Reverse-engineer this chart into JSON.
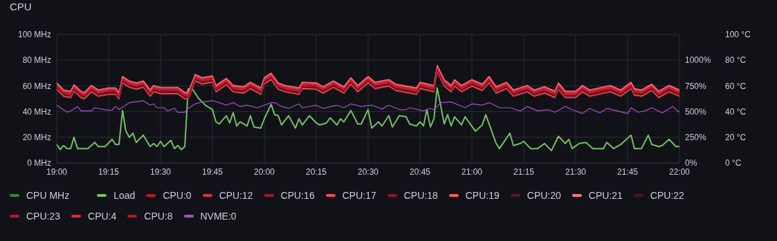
{
  "chart_data": {
    "type": "line",
    "title": "CPU",
    "x": [
      19,
      19.033,
      19.067,
      19.083,
      19.117,
      19.133,
      19.167,
      19.2,
      19.25,
      19.283,
      19.3,
      19.317,
      19.35,
      19.383,
      19.417,
      19.45,
      19.467,
      19.5,
      19.583,
      19.617,
      19.633,
      19.667,
      19.7,
      19.75,
      19.767,
      19.817,
      19.85,
      19.9,
      19.933,
      19.983,
      20,
      20.033,
      20.067,
      20.1,
      20.167,
      20.183,
      20.25,
      20.283,
      20.333,
      20.383,
      20.417,
      20.45,
      20.5,
      20.533,
      20.6,
      20.633,
      20.733,
      20.75,
      20.817,
      20.833,
      20.867,
      20.9,
      20.917,
      20.95,
      21,
      21.05,
      21.083,
      21.117,
      21.167,
      21.2,
      21.267,
      21.3,
      21.35,
      21.4,
      21.417,
      21.45,
      21.5,
      21.533,
      21.567,
      21.667,
      21.717,
      21.767,
      21.783,
      21.817,
      21.867,
      21.9,
      21.95,
      22
    ],
    "series": [
      {
        "name": "CPU MHz",
        "color": "#37872d",
        "values": [
          null,
          null,
          null,
          null,
          null,
          null,
          null,
          null,
          null,
          null,
          null,
          null,
          null,
          null,
          null,
          null,
          null,
          null,
          null,
          null,
          null,
          null,
          null,
          null,
          null,
          null,
          null,
          null,
          null,
          null,
          null,
          null,
          null,
          null,
          null,
          null,
          null,
          null,
          null,
          null,
          null,
          null,
          null,
          null,
          null,
          null,
          null,
          null,
          null,
          null,
          null,
          null,
          null,
          null,
          null,
          null,
          null,
          null,
          null,
          null,
          null,
          null,
          null,
          null,
          null,
          null,
          null,
          null,
          null,
          null,
          null,
          null,
          null,
          null,
          null,
          null,
          null,
          null
        ]
      },
      {
        "name": "Load",
        "color": "#73bf69",
        "axis": "y2",
        "x": [
          19,
          19.017,
          19.033,
          19.05,
          19.067,
          19.083,
          19.1,
          19.15,
          19.183,
          19.2,
          19.233,
          19.267,
          19.283,
          19.3,
          19.317,
          19.333,
          19.35,
          19.367,
          19.383,
          19.417,
          19.45,
          19.467,
          19.483,
          19.5,
          19.517,
          19.55,
          19.567,
          19.583,
          19.6,
          19.617,
          19.633,
          19.65,
          19.683,
          19.717,
          19.75,
          19.767,
          19.783,
          19.817,
          19.833,
          19.85,
          19.867,
          19.883,
          19.917,
          19.933,
          19.95,
          19.983,
          20,
          20.033,
          20.05,
          20.067,
          20.083,
          20.117,
          20.15,
          20.167,
          20.183,
          20.217,
          20.25,
          20.267,
          20.3,
          20.317,
          20.35,
          20.367,
          20.383,
          20.417,
          20.45,
          20.467,
          20.5,
          20.517,
          20.55,
          20.567,
          20.6,
          20.617,
          20.65,
          20.683,
          20.7,
          20.733,
          20.75,
          20.767,
          20.783,
          20.8,
          20.817,
          20.833,
          20.867,
          20.883,
          20.9,
          20.917,
          20.95,
          20.967,
          21.017,
          21.05,
          21.067,
          21.117,
          21.133,
          21.183,
          21.2,
          21.233,
          21.25,
          21.283,
          21.317,
          21.35,
          21.383,
          21.417,
          21.45,
          21.467,
          21.483,
          21.517,
          21.55,
          21.583,
          21.633,
          21.65,
          21.683,
          21.717,
          21.767,
          21.783,
          21.817,
          21.85,
          21.867,
          21.9,
          21.917,
          21.95,
          21.983,
          22
        ],
        "values": [
          180,
          130,
          170,
          140,
          140,
          250,
          140,
          140,
          200,
          160,
          160,
          230,
          180,
          180,
          510,
          310,
          250,
          290,
          200,
          270,
          160,
          190,
          160,
          210,
          160,
          220,
          140,
          170,
          130,
          160,
          720,
          730,
          630,
          560,
          520,
          400,
          380,
          460,
          390,
          490,
          360,
          400,
          360,
          460,
          350,
          340,
          430,
          570,
          470,
          460,
          370,
          460,
          340,
          430,
          370,
          460,
          390,
          370,
          390,
          440,
          370,
          430,
          400,
          510,
          380,
          380,
          520,
          340,
          400,
          360,
          460,
          350,
          460,
          450,
          380,
          360,
          400,
          360,
          520,
          350,
          430,
          730,
          380,
          470,
          360,
          450,
          370,
          450,
          310,
          370,
          470,
          190,
          140,
          290,
          170,
          190,
          210,
          140,
          140,
          190,
          120,
          260,
          190,
          230,
          140,
          190,
          200,
          140,
          140,
          200,
          140,
          180,
          270,
          140,
          140,
          270,
          180,
          160,
          170,
          230,
          160,
          160
        ]
      },
      {
        "name": "CPU:0",
        "color": "#c4162a",
        "axis": "y3",
        "values": [
          61,
          55.5,
          54.5,
          59.5,
          54.5,
          53.5,
          59,
          55.5,
          57,
          57,
          53.5,
          66,
          62.5,
          61,
          62.5,
          55.5,
          59,
          57.5,
          57.5,
          53.5,
          53.5,
          67.5,
          65,
          66.5,
          59,
          64.5,
          59,
          58,
          61.5,
          57,
          65,
          68.5,
          61,
          59,
          57,
          61.5,
          61,
          58,
          62.5,
          58,
          65,
          59,
          66,
          61.5,
          63.5,
          60,
          57,
          61.5,
          59,
          74.5,
          63.5,
          59,
          63.5,
          59,
          63.5,
          60,
          66,
          58,
          61.5,
          55.5,
          59,
          55.5,
          58,
          54.5,
          61,
          54.5,
          54.5,
          59,
          55.5,
          59,
          55.5,
          61.5,
          56.5,
          55.5,
          60,
          54.5,
          59,
          55.5
        ]
      },
      {
        "name": "CPU:12",
        "color": "#e02f44",
        "axis": "y3",
        "values": [
          61.5,
          56,
          55,
          60,
          55,
          54,
          59.5,
          56,
          57.5,
          57.5,
          54,
          66.5,
          63,
          61.5,
          63,
          56,
          59.5,
          58,
          58,
          54,
          54,
          68,
          65.5,
          67,
          59.5,
          65,
          59.5,
          58.5,
          62,
          57.5,
          65.5,
          69,
          61.5,
          59.5,
          57.5,
          62,
          61.5,
          58.5,
          63,
          58.5,
          65.5,
          59.5,
          66.5,
          62,
          64,
          60.5,
          57.5,
          62,
          59.5,
          75,
          64,
          59.5,
          64,
          59.5,
          64,
          60.5,
          66.5,
          58.5,
          62,
          56,
          59.5,
          56,
          58.5,
          55,
          61.5,
          55,
          55,
          59.5,
          56,
          59.5,
          56,
          62,
          57,
          56,
          60.5,
          55,
          59.5,
          56
        ]
      },
      {
        "name": "CPU:16",
        "color": "#a1182b",
        "axis": "y3",
        "values": [
          58,
          52.5,
          51.5,
          56.5,
          51.5,
          50.5,
          56,
          52.5,
          54,
          54,
          50.5,
          63,
          59.5,
          58,
          59.5,
          52.5,
          56,
          54.5,
          54.5,
          50.5,
          50.5,
          64.5,
          62,
          63.5,
          56,
          61.5,
          56,
          55,
          58.5,
          54,
          62,
          65.5,
          58,
          56,
          54,
          58.5,
          58,
          55,
          59.5,
          55,
          62,
          56,
          63,
          58.5,
          60.5,
          57,
          54,
          58.5,
          56,
          71.5,
          60.5,
          56,
          60.5,
          56,
          60.5,
          57,
          63,
          55,
          58.5,
          52.5,
          56,
          52.5,
          55,
          51.5,
          58,
          51.5,
          51.5,
          56,
          52.5,
          56,
          52.5,
          58.5,
          53.5,
          52.5,
          57,
          51.5,
          56,
          52.5
        ]
      },
      {
        "name": "CPU:17",
        "color": "#f2495c",
        "axis": "y3",
        "values": [
          62,
          56.5,
          55.5,
          60.5,
          55.5,
          54.5,
          60,
          56.5,
          58,
          58,
          54.5,
          67,
          63.5,
          62,
          63.5,
          56.5,
          60,
          58.5,
          58.5,
          54.5,
          54.5,
          68.5,
          66,
          67.5,
          60,
          65.5,
          60,
          59,
          62.5,
          58,
          66,
          69.5,
          62,
          60,
          58,
          62.5,
          62,
          59,
          63.5,
          59,
          66,
          60,
          67,
          62.5,
          64.5,
          61,
          58,
          62.5,
          60,
          75.5,
          64.5,
          60,
          64.5,
          60,
          64.5,
          61,
          67,
          59,
          62.5,
          56.5,
          60,
          56.5,
          59,
          55.5,
          62,
          55.5,
          55.5,
          60,
          56.5,
          60,
          56.5,
          62.5,
          57.5,
          56.5,
          61,
          55.5,
          60,
          56.5
        ]
      },
      {
        "name": "CPU:18",
        "color": "#8a1a2a",
        "axis": "y3",
        "values": [
          57,
          51.5,
          50.5,
          55.5,
          50.5,
          49.5,
          55,
          51.5,
          53,
          53,
          49.5,
          62,
          58.5,
          57,
          58.5,
          51.5,
          55,
          53.5,
          53.5,
          49.5,
          49.5,
          63.5,
          61,
          62.5,
          55,
          60.5,
          55,
          54,
          57.5,
          53,
          61,
          64.5,
          57,
          55,
          53,
          57.5,
          57,
          54,
          58.5,
          54,
          61,
          55,
          62,
          57.5,
          59.5,
          56,
          53,
          57.5,
          55,
          70.5,
          59.5,
          55,
          59.5,
          55,
          59.5,
          56,
          62,
          54,
          57.5,
          51.5,
          55,
          51.5,
          54,
          50.5,
          57,
          50.5,
          50.5,
          55,
          51.5,
          55,
          51.5,
          57.5,
          52.5,
          51.5,
          56,
          50.5,
          55,
          51.5
        ]
      },
      {
        "name": "CPU:19",
        "color": "#ff5a5a",
        "axis": "y3",
        "values": [
          57.5,
          52,
          51,
          56,
          51,
          50,
          55.5,
          52,
          53.5,
          53.5,
          50,
          62.5,
          59,
          57.5,
          59,
          52,
          55.5,
          54,
          54,
          50,
          50,
          64,
          61.5,
          63,
          55.5,
          61,
          55.5,
          54.5,
          58,
          53.5,
          61.5,
          65,
          57.5,
          55.5,
          53.5,
          58,
          57.5,
          54.5,
          59,
          54.5,
          61.5,
          55.5,
          62.5,
          58,
          60,
          56.5,
          53.5,
          58,
          55.5,
          71,
          60,
          55.5,
          60,
          55.5,
          60,
          56.5,
          62.5,
          54.5,
          58,
          52,
          55.5,
          52,
          54.5,
          51,
          57.5,
          51,
          51,
          55.5,
          52,
          55.5,
          52,
          58,
          53,
          52,
          56.5,
          51,
          55.5,
          52
        ]
      },
      {
        "name": "CPU:20",
        "color": "#5c1a24",
        "axis": "y3",
        "values": [
          59,
          53.5,
          52.5,
          57.5,
          52.5,
          51.5,
          57,
          53.5,
          55,
          55,
          51.5,
          64,
          60.5,
          59,
          60.5,
          53.5,
          57,
          55.5,
          55.5,
          51.5,
          51.5,
          65.5,
          63,
          64.5,
          57,
          62.5,
          57,
          56,
          59.5,
          55,
          63,
          66.5,
          59,
          57,
          55,
          59.5,
          59,
          56,
          60.5,
          56,
          63,
          57,
          64,
          59.5,
          61.5,
          58,
          55,
          59.5,
          57,
          72.5,
          61.5,
          57,
          61.5,
          57,
          61.5,
          58,
          64,
          56,
          59.5,
          53.5,
          57,
          53.5,
          56,
          52.5,
          59,
          52.5,
          52.5,
          57,
          53.5,
          57,
          53.5,
          59.5,
          54.5,
          53.5,
          58,
          52.5,
          57,
          53.5
        ]
      },
      {
        "name": "CPU:21",
        "color": "#ff7383",
        "axis": "y3",
        "values": [
          62.5,
          57,
          56,
          61,
          56,
          55,
          60.5,
          57,
          58.5,
          58.5,
          55,
          67.5,
          64,
          62.5,
          64,
          57,
          60.5,
          59,
          59,
          55,
          55,
          69,
          66.5,
          68,
          60.5,
          66,
          60.5,
          59.5,
          63,
          58.5,
          66.5,
          70,
          62.5,
          60.5,
          58.5,
          63,
          62.5,
          59.5,
          64,
          59.5,
          66.5,
          60.5,
          67.5,
          63,
          65,
          61.5,
          58.5,
          63,
          60.5,
          76,
          65,
          60.5,
          65,
          60.5,
          65,
          61.5,
          67.5,
          59.5,
          63,
          57,
          60.5,
          57,
          59.5,
          56,
          62.5,
          56,
          56,
          60.5,
          57,
          60.5,
          57,
          63,
          58,
          57,
          61.5,
          56,
          60.5,
          57
        ]
      },
      {
        "name": "CPU:22",
        "color": "#4a1520",
        "axis": "y3",
        "values": [
          58.5,
          53,
          52,
          57,
          52,
          51,
          56.5,
          53,
          54.5,
          54.5,
          51,
          63.5,
          60,
          58.5,
          60,
          53,
          56.5,
          55,
          55,
          51,
          51,
          65,
          62.5,
          64,
          56.5,
          62,
          56.5,
          55.5,
          59,
          54.5,
          62.5,
          66,
          58.5,
          56.5,
          54.5,
          59,
          58.5,
          55.5,
          60,
          55.5,
          62.5,
          56.5,
          63.5,
          59,
          61,
          57.5,
          54.5,
          59,
          56.5,
          72,
          61,
          56.5,
          61,
          56.5,
          61,
          57.5,
          63.5,
          55.5,
          59,
          53,
          56.5,
          53,
          55.5,
          52,
          58.5,
          52,
          52,
          56.5,
          53,
          56.5,
          53,
          59,
          54,
          53,
          57.5,
          52,
          56.5,
          53
        ]
      },
      {
        "name": "CPU:23",
        "color": "#c8102e",
        "axis": "y3",
        "values": [
          59.5,
          54,
          53,
          58,
          53,
          52,
          57.5,
          54,
          55.5,
          55.5,
          52,
          64.5,
          61,
          59.5,
          61,
          54,
          57.5,
          56,
          56,
          52,
          52,
          66,
          63.5,
          65,
          57.5,
          63,
          57.5,
          56.5,
          60,
          55.5,
          63.5,
          67,
          59.5,
          57.5,
          55.5,
          60,
          59.5,
          56.5,
          61,
          56.5,
          63.5,
          57.5,
          64.5,
          60,
          62,
          58.5,
          55.5,
          60,
          57.5,
          73,
          62,
          57.5,
          62,
          57.5,
          62,
          58.5,
          64.5,
          56.5,
          60,
          54,
          57.5,
          54,
          56.5,
          53,
          59.5,
          53,
          53,
          57.5,
          54,
          57.5,
          54,
          60,
          55,
          54,
          58.5,
          53,
          57.5,
          54
        ]
      },
      {
        "name": "CPU:4",
        "color": "#e8263b",
        "axis": "y3",
        "values": [
          60.5,
          55,
          54,
          59,
          54,
          53,
          58.5,
          55,
          56.5,
          56.5,
          53,
          65.5,
          62,
          60.5,
          62,
          55,
          58.5,
          57,
          57,
          53,
          53,
          67,
          64.5,
          66,
          58.5,
          64,
          58.5,
          57.5,
          61,
          56.5,
          64.5,
          68,
          60.5,
          58.5,
          56.5,
          61,
          60.5,
          57.5,
          62,
          57.5,
          64.5,
          58.5,
          65.5,
          61,
          63,
          59.5,
          56.5,
          61,
          58.5,
          74,
          63,
          58.5,
          63,
          58.5,
          63,
          59.5,
          65.5,
          57.5,
          61,
          55,
          58.5,
          55,
          57.5,
          54,
          60.5,
          54,
          54,
          58.5,
          55,
          58.5,
          55,
          61,
          56,
          55,
          59.5,
          54,
          58.5,
          55
        ]
      },
      {
        "name": "CPU:8",
        "color": "#b0172b",
        "axis": "y3",
        "values": [
          60,
          54.5,
          53.5,
          58.5,
          53.5,
          52.5,
          58,
          54.5,
          56,
          56,
          52.5,
          65,
          61.5,
          60,
          61.5,
          54.5,
          58,
          56.5,
          56.5,
          52.5,
          52.5,
          66.5,
          64,
          65.5,
          58,
          63.5,
          58,
          57,
          60.5,
          56,
          64,
          67.5,
          60,
          58,
          56,
          60.5,
          60,
          57,
          61.5,
          57,
          64,
          58,
          65,
          60.5,
          62.5,
          59,
          56,
          60.5,
          58,
          73.5,
          62.5,
          58,
          62.5,
          58,
          62.5,
          59,
          65,
          57,
          60.5,
          54.5,
          58,
          54.5,
          57,
          53.5,
          60,
          53.5,
          53.5,
          58,
          54.5,
          58,
          54.5,
          60.5,
          55.5,
          54.5,
          59,
          53.5,
          58,
          54.5
        ]
      },
      {
        "name": "NVME:0",
        "color": "#a352cc",
        "axis": "y3",
        "x": [
          19,
          19.05,
          19.067,
          19.1,
          19.117,
          19.167,
          19.183,
          19.233,
          19.267,
          19.283,
          19.3,
          19.333,
          19.35,
          19.417,
          19.45,
          19.467,
          19.483,
          19.517,
          19.533,
          19.567,
          19.583,
          19.617,
          19.633,
          19.667,
          19.7,
          19.75,
          19.783,
          19.817,
          19.85,
          19.883,
          19.917,
          19.967,
          20.033,
          20.05,
          20.083,
          20.117,
          20.167,
          20.183,
          20.25,
          20.283,
          20.35,
          20.383,
          20.417,
          20.467,
          20.517,
          20.567,
          20.6,
          20.65,
          20.683,
          20.7,
          20.767,
          20.8,
          20.817,
          20.85,
          20.9,
          20.967,
          21,
          21.05,
          21.083,
          21.133,
          21.183,
          21.233,
          21.267,
          21.317,
          21.367,
          21.4,
          21.45,
          21.483,
          21.533,
          21.567,
          21.617,
          21.65,
          21.75,
          21.767,
          21.8,
          21.833,
          21.867,
          21.917,
          21.967,
          22
        ],
        "values": [
          45,
          39.5,
          40.5,
          44,
          40.5,
          40.5,
          43,
          41.5,
          41,
          44,
          41.5,
          45,
          47,
          48.5,
          45,
          46,
          43,
          43,
          40.5,
          42.5,
          39.5,
          39.5,
          42.5,
          46,
          47.5,
          48.5,
          47,
          45,
          47,
          44,
          45,
          43,
          47,
          47,
          44,
          42.5,
          46,
          43,
          45,
          42.5,
          45,
          43,
          46,
          44,
          45,
          42,
          45,
          41.5,
          41.5,
          43,
          40.5,
          42.5,
          41.5,
          47,
          47.5,
          43,
          46,
          45,
          47,
          43,
          43,
          40.5,
          44,
          40.5,
          41.5,
          39.5,
          44,
          41.5,
          38.5,
          42.5,
          39,
          42.5,
          38.5,
          43,
          39.5,
          40.5,
          43,
          39,
          44,
          39.5
        ]
      }
    ],
    "xlim": [
      19,
      22
    ],
    "xticks": [
      {
        "value": 19,
        "label": "19:00"
      },
      {
        "value": 19.25,
        "label": "19:15"
      },
      {
        "value": 19.5,
        "label": "19:30"
      },
      {
        "value": 19.75,
        "label": "19:45"
      },
      {
        "value": 20,
        "label": "20:00"
      },
      {
        "value": 20.25,
        "label": "20:15"
      },
      {
        "value": 20.5,
        "label": "20:30"
      },
      {
        "value": 20.75,
        "label": "20:45"
      },
      {
        "value": 21,
        "label": "21:00"
      },
      {
        "value": 21.25,
        "label": "21:15"
      },
      {
        "value": 21.5,
        "label": "21:30"
      },
      {
        "value": 21.75,
        "label": "21:45"
      },
      {
        "value": 22,
        "label": "22:00"
      }
    ],
    "ylim": [
      0,
      100
    ],
    "yticks": [
      {
        "value": 0,
        "label": "0 MHz"
      },
      {
        "value": 20,
        "label": "20 MHz"
      },
      {
        "value": 40,
        "label": "40 MHz"
      },
      {
        "value": 60,
        "label": "60 MHz"
      },
      {
        "value": 80,
        "label": "80 MHz"
      },
      {
        "value": 100,
        "label": "100 MHz"
      }
    ],
    "y2lim": [
      0,
      1250
    ],
    "y2ticks": [
      {
        "value": 0,
        "label": "0%"
      },
      {
        "value": 250,
        "label": "250%"
      },
      {
        "value": 500,
        "label": "500%"
      },
      {
        "value": 750,
        "label": "750%"
      },
      {
        "value": 1000,
        "label": "1000%"
      }
    ],
    "y3lim": [
      0,
      100
    ],
    "y3ticks": [
      {
        "value": 0,
        "label": "0 °C"
      },
      {
        "value": 20,
        "label": "20 °C"
      },
      {
        "value": 40,
        "label": "40 °C"
      },
      {
        "value": 60,
        "label": "60 °C"
      },
      {
        "value": 80,
        "label": "80 °C"
      },
      {
        "value": 100,
        "label": "100 °C"
      }
    ],
    "grid": true,
    "legend": "bottom"
  }
}
